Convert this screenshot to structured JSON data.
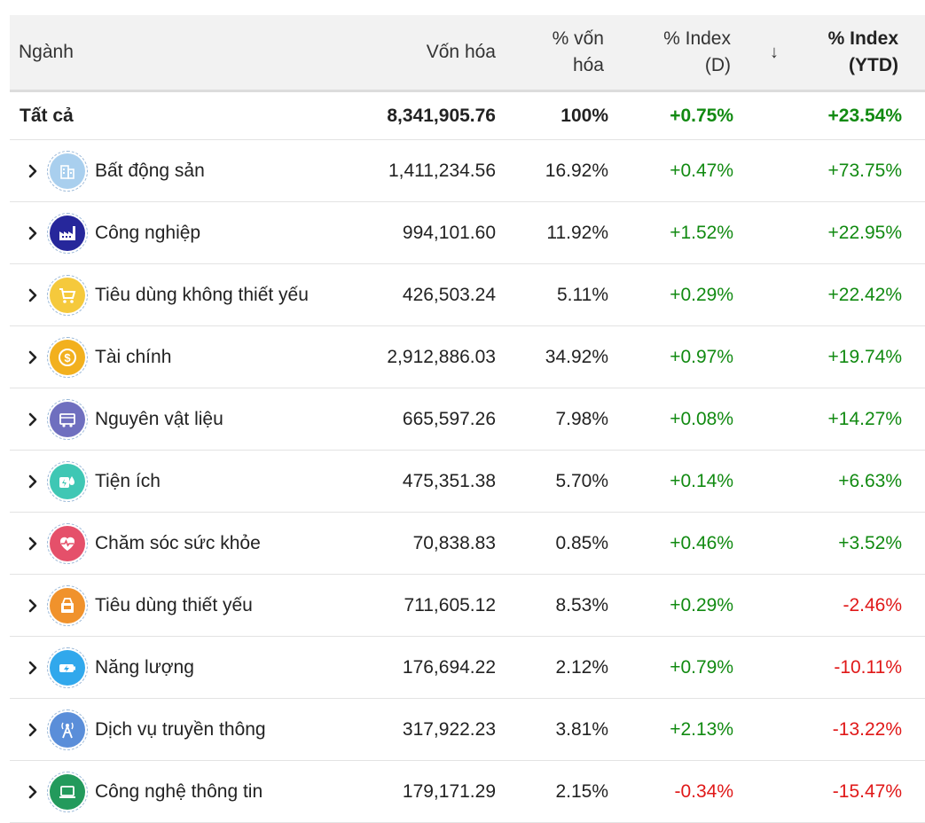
{
  "header": {
    "sector": "Ngành",
    "market_cap": "Vốn hóa",
    "pct_cap_line1": "% vốn",
    "pct_cap_line2": "hóa",
    "index_d_line1": "% Index",
    "index_d_line2": "(D)",
    "sort_indicator": "↓",
    "index_ytd_line1": "% Index",
    "index_ytd_line2": "(YTD)"
  },
  "total": {
    "name": "Tất cả",
    "market_cap": "8,341,905.76",
    "pct_cap": "100%",
    "index_d": "+0.75%",
    "index_ytd": "+23.54%"
  },
  "colors": {
    "positive": "#118a11",
    "negative": "#e01818"
  },
  "rows": [
    {
      "name": "Bất động sản",
      "icon": "building-icon",
      "icon_color": "#a9cfee",
      "market_cap": "1,411,234.56",
      "pct_cap": "16.92%",
      "index_d": "+0.47%",
      "index_ytd": "+73.75%"
    },
    {
      "name": "Công nghiệp",
      "icon": "factory-icon",
      "icon_color": "#26279b",
      "market_cap": "994,101.60",
      "pct_cap": "11.92%",
      "index_d": "+1.52%",
      "index_ytd": "+22.95%"
    },
    {
      "name": "Tiêu dùng không thiết yếu",
      "icon": "shopping-cart-icon",
      "icon_color": "#f5c93c",
      "market_cap": "426,503.24",
      "pct_cap": "5.11%",
      "index_d": "+0.29%",
      "index_ytd": "+22.42%"
    },
    {
      "name": "Tài chính",
      "icon": "dollar-coin-icon",
      "icon_color": "#f2b01e",
      "market_cap": "2,912,886.03",
      "pct_cap": "34.92%",
      "index_d": "+0.97%",
      "index_ytd": "+19.74%"
    },
    {
      "name": "Nguyên vật liệu",
      "icon": "materials-cart-icon",
      "icon_color": "#6f6fbf",
      "market_cap": "665,597.26",
      "pct_cap": "7.98%",
      "index_d": "+0.08%",
      "index_ytd": "+14.27%"
    },
    {
      "name": "Tiện ích",
      "icon": "utilities-icon",
      "icon_color": "#3fc7b4",
      "market_cap": "475,351.38",
      "pct_cap": "5.70%",
      "index_d": "+0.14%",
      "index_ytd": "+6.63%"
    },
    {
      "name": "Chăm sóc sức khỏe",
      "icon": "heartbeat-icon",
      "icon_color": "#e5506a",
      "market_cap": "70,838.83",
      "pct_cap": "0.85%",
      "index_d": "+0.46%",
      "index_ytd": "+3.52%"
    },
    {
      "name": "Tiêu dùng thiết yếu",
      "icon": "consumer-staples-icon",
      "icon_color": "#f0922c",
      "market_cap": "711,605.12",
      "pct_cap": "8.53%",
      "index_d": "+0.29%",
      "index_ytd": "-2.46%"
    },
    {
      "name": "Năng lượng",
      "icon": "battery-icon",
      "icon_color": "#31a8ec",
      "market_cap": "176,694.22",
      "pct_cap": "2.12%",
      "index_d": "+0.79%",
      "index_ytd": "-10.11%"
    },
    {
      "name": "Dịch vụ truyền thông",
      "icon": "antenna-icon",
      "icon_color": "#5a8ed9",
      "market_cap": "317,922.23",
      "pct_cap": "3.81%",
      "index_d": "+2.13%",
      "index_ytd": "-13.22%"
    },
    {
      "name": "Công nghệ thông tin",
      "icon": "laptop-icon",
      "icon_color": "#239a5c",
      "market_cap": "179,171.29",
      "pct_cap": "2.15%",
      "index_d": "-0.34%",
      "index_ytd": "-15.47%"
    }
  ]
}
